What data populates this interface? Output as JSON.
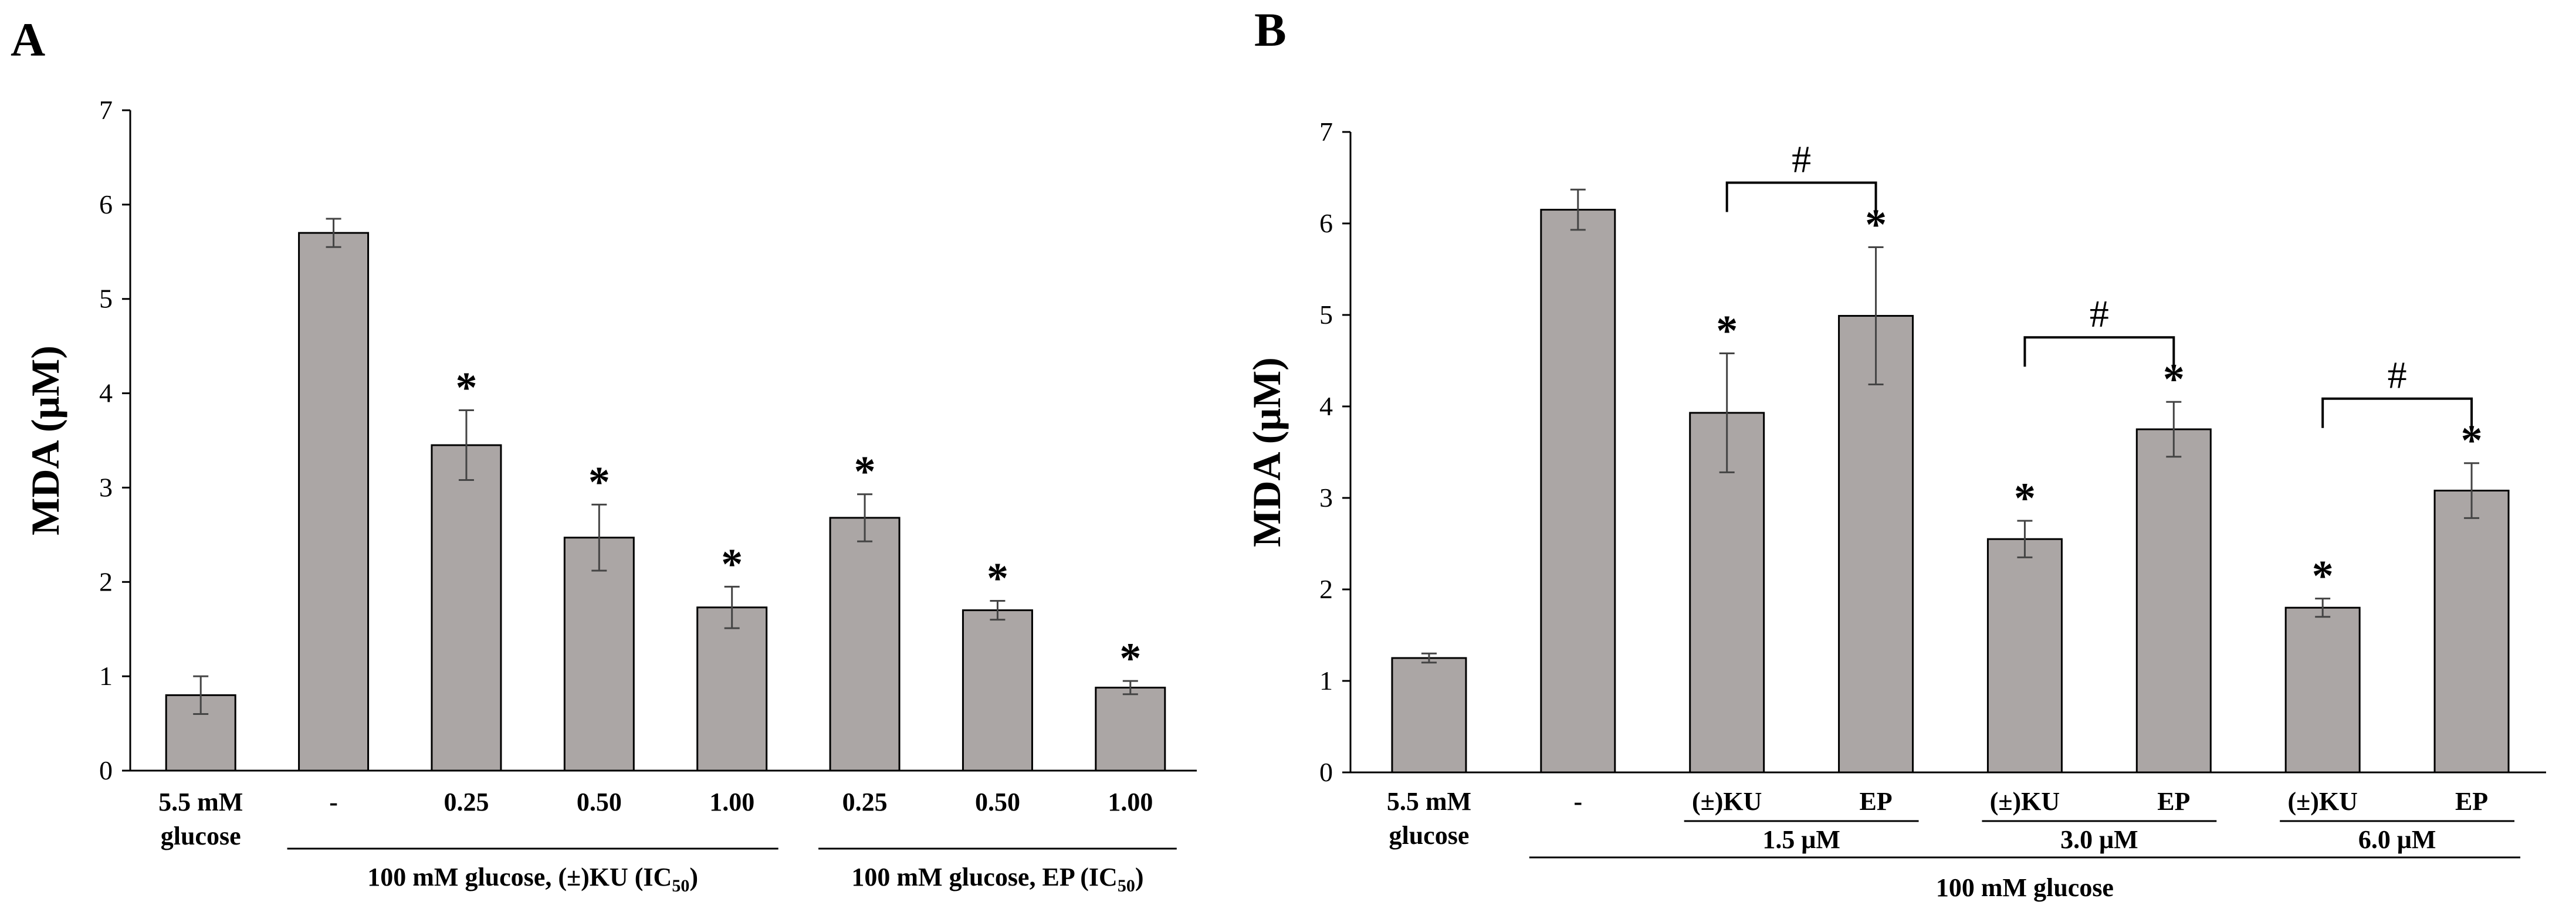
{
  "chart_data": [
    {
      "type": "bar",
      "panel_label": "A",
      "ylabel": "MDA (μM)",
      "ylim": [
        0,
        7
      ],
      "yticks": [
        0,
        1,
        2,
        3,
        4,
        5,
        6,
        7
      ],
      "categories": [
        "5.5 mM glucose",
        "-",
        "0.25",
        "0.50",
        "1.00",
        "0.25",
        "0.50",
        "1.00"
      ],
      "category_lines": [
        [
          "5.5 mM",
          "glucose"
        ],
        [
          "-"
        ],
        [
          "0.25"
        ],
        [
          "0.50"
        ],
        [
          "1.00"
        ],
        [
          "0.25"
        ],
        [
          "0.50"
        ],
        [
          "1.00"
        ]
      ],
      "values": [
        0.8,
        5.7,
        3.45,
        2.47,
        1.73,
        2.68,
        1.7,
        0.88
      ],
      "errors": [
        0.2,
        0.15,
        0.37,
        0.35,
        0.22,
        0.25,
        0.1,
        0.07
      ],
      "significance": [
        "",
        "",
        "*",
        "*",
        "*",
        "*",
        "*",
        "*"
      ],
      "group_labels": [
        {
          "text": "100 mM glucose, (±)KU (IC",
          "subscript": "50",
          "suffix": ")",
          "from": 1,
          "to": 4
        },
        {
          "text": "100 mM glucose, EP (IC",
          "subscript": "50",
          "suffix": ")",
          "from": 5,
          "to": 7
        }
      ],
      "bar_color": "#aba6a5"
    },
    {
      "type": "bar",
      "panel_label": "B",
      "ylabel": "MDA (μM)",
      "ylim": [
        0,
        7
      ],
      "yticks": [
        0,
        1,
        2,
        3,
        4,
        5,
        6,
        7
      ],
      "categories": [
        "5.5 mM glucose",
        "-",
        "(±)KU",
        "EP",
        "(±)KU",
        "EP",
        "(±)KU",
        "EP"
      ],
      "category_lines": [
        [
          "5.5 mM",
          "glucose"
        ],
        [
          "-"
        ],
        [
          "(±)KU"
        ],
        [
          "EP"
        ],
        [
          "(±)KU"
        ],
        [
          "EP"
        ],
        [
          "(±)KU"
        ],
        [
          "EP"
        ]
      ],
      "values": [
        1.25,
        6.15,
        3.93,
        4.99,
        2.55,
        3.75,
        1.8,
        3.08
      ],
      "errors": [
        0.05,
        0.22,
        0.65,
        0.75,
        0.2,
        0.3,
        0.1,
        0.3
      ],
      "significance": [
        "",
        "",
        "*",
        "*",
        "*",
        "*",
        "*",
        "*"
      ],
      "dose_labels": [
        {
          "text": "1.5 μM",
          "from": 2,
          "to": 3
        },
        {
          "text": "3.0 μM",
          "from": 4,
          "to": 5
        },
        {
          "text": "6.0 μM",
          "from": 6,
          "to": 7
        }
      ],
      "group_labels": [
        {
          "text": "100 mM glucose",
          "from": 1,
          "to": 7
        }
      ],
      "comparison_brackets": [
        {
          "from": 2,
          "to": 3,
          "label": "#"
        },
        {
          "from": 4,
          "to": 5,
          "label": "#"
        },
        {
          "from": 6,
          "to": 7,
          "label": "#"
        }
      ],
      "bar_color": "#aba6a5"
    }
  ]
}
